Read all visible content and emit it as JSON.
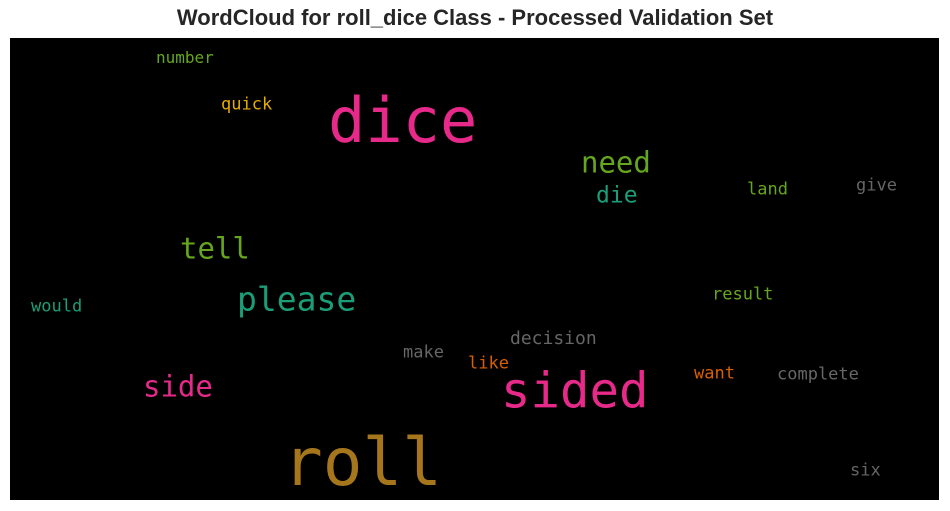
{
  "title": "WordCloud for roll_dice Class - Processed Validation Set",
  "chart_data": {
    "type": "wordcloud",
    "background": "#000000",
    "words": [
      {
        "text": "roll",
        "color": "#a6761d"
      },
      {
        "text": "dice",
        "color": "#e7298a"
      },
      {
        "text": "sided",
        "color": "#e7298a"
      },
      {
        "text": "please",
        "color": "#1b9e77"
      },
      {
        "text": "need",
        "color": "#66a61e"
      },
      {
        "text": "tell",
        "color": "#66a61e"
      },
      {
        "text": "side",
        "color": "#e7298a"
      },
      {
        "text": "die",
        "color": "#1b9e77"
      },
      {
        "text": "decision",
        "color": "#666666"
      },
      {
        "text": "result",
        "color": "#66a61e"
      },
      {
        "text": "complete",
        "color": "#666666"
      },
      {
        "text": "land",
        "color": "#66a61e"
      },
      {
        "text": "give",
        "color": "#666666"
      },
      {
        "text": "make",
        "color": "#666666"
      },
      {
        "text": "like",
        "color": "#d95f02"
      },
      {
        "text": "want",
        "color": "#d95f02"
      },
      {
        "text": "would",
        "color": "#1b9e77"
      },
      {
        "text": "quick",
        "color": "#e6ab02"
      },
      {
        "text": "number",
        "color": "#66a61e"
      },
      {
        "text": "six",
        "color": "#666666"
      }
    ]
  }
}
